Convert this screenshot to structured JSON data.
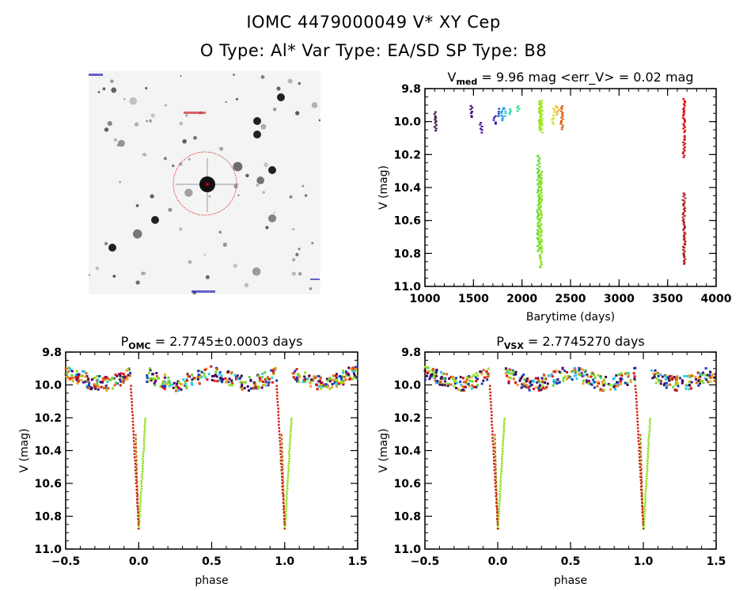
{
  "header": {
    "line1": "IOMC 4479000049    V* XY Cep",
    "line2": "O Type: Al*   Var Type: EA/SD   SP Type: B8"
  },
  "image_panel": {
    "description": "star field finder chart",
    "circle_color": "#cc0000",
    "label_color": "#0000aa"
  },
  "chart_data": [
    {
      "type": "scatter",
      "id": "lightcurve",
      "title_main": "V",
      "title_sub": "med",
      "title_rest": " = 9.96 mag <err_V> = 0.02 mag",
      "xlabel": "Barytime (days)",
      "ylabel": "V (mag)",
      "xlim": [
        1000,
        4000
      ],
      "ylim": [
        9.8,
        11.0
      ],
      "y_inverted": true,
      "xticks": [
        "1000",
        "1500",
        "2000",
        "2500",
        "3000",
        "3500",
        "4000"
      ],
      "yticks": [
        "9.8",
        "10.0",
        "10.2",
        "10.4",
        "10.6",
        "10.8",
        "11.0"
      ],
      "groups": [
        {
          "x": 1110,
          "y": [
            9.94,
            10.05
          ],
          "color": "#3d0a4a"
        },
        {
          "x": 1480,
          "y": [
            9.9,
            9.97
          ],
          "color": "#4b0a6e"
        },
        {
          "x": 1580,
          "y": [
            10.0,
            10.06
          ],
          "color": "#4a10a0"
        },
        {
          "x": 1720,
          "y": [
            9.96,
            10.01
          ],
          "color": "#2a1aa8"
        },
        {
          "x": 1760,
          "y": [
            9.92,
            9.96
          ],
          "color": "#1040c0"
        },
        {
          "x": 1800,
          "y": [
            9.91,
            9.99
          ],
          "color": "#20a0e0"
        },
        {
          "x": 1820,
          "y": [
            9.92,
            9.96
          ],
          "color": "#30c8e8"
        },
        {
          "x": 1880,
          "y": [
            9.92,
            9.95
          ],
          "color": "#30d8c0"
        },
        {
          "x": 1960,
          "y": [
            9.9,
            9.93
          ],
          "color": "#30e090"
        },
        {
          "x": 2185,
          "y": [
            9.87,
            10.04
          ],
          "color": "#90e020"
        },
        {
          "x": 2200,
          "y": [
            9.87,
            10.06
          ],
          "color": "#a0e818"
        },
        {
          "x": 2170,
          "y": [
            10.2,
            10.78
          ],
          "color": "#60d830"
        },
        {
          "x": 2195,
          "y": [
            10.3,
            10.88
          ],
          "color": "#90e020"
        },
        {
          "x": 2320,
          "y": [
            9.96,
            10.01
          ],
          "color": "#d0e020"
        },
        {
          "x": 2340,
          "y": [
            9.9,
            9.94
          ],
          "color": "#f0d020"
        },
        {
          "x": 2370,
          "y": [
            9.91,
            9.95
          ],
          "color": "#f0a020"
        },
        {
          "x": 2410,
          "y": [
            9.9,
            10.04
          ],
          "color": "#e06010"
        },
        {
          "x": 3670,
          "y": [
            9.86,
            10.06
          ],
          "color": "#e01010"
        },
        {
          "x": 3670,
          "y": [
            10.08,
            10.21
          ],
          "color": "#c02020"
        },
        {
          "x": 3670,
          "y": [
            10.43,
            10.86
          ],
          "color": "#b02020"
        }
      ]
    },
    {
      "type": "scatter",
      "id": "phase_omc",
      "title_main": "P",
      "title_sub": "OMC",
      "title_rest": " = 2.7745±0.0003 days",
      "xlabel": "phase",
      "ylabel": "V (mag)",
      "xlim": [
        -0.5,
        1.5
      ],
      "ylim": [
        9.8,
        11.0
      ],
      "y_inverted": true,
      "xticks": [
        "-0.5",
        "0.0",
        "0.5",
        "1.0",
        "1.5"
      ],
      "yticks": [
        "9.8",
        "10.0",
        "10.2",
        "10.4",
        "10.6",
        "10.8",
        "11.0"
      ],
      "period_days": 2.7745,
      "period_err_days": 0.0003,
      "eclipse_depth_mag": 10.87,
      "baseline_mag": 9.96
    },
    {
      "type": "scatter",
      "id": "phase_vsx",
      "title_main": "P",
      "title_sub": "VSX",
      "title_rest": " = 2.7745270 days",
      "xlabel": "phase",
      "ylabel": "V (mag)",
      "xlim": [
        -0.5,
        1.5
      ],
      "ylim": [
        9.8,
        11.0
      ],
      "y_inverted": true,
      "xticks": [
        "-0.5",
        "0.0",
        "0.5",
        "1.0",
        "1.5"
      ],
      "yticks": [
        "9.8",
        "10.0",
        "10.2",
        "10.4",
        "10.6",
        "10.8",
        "11.0"
      ],
      "period_days": 2.774527,
      "eclipse_depth_mag": 10.87,
      "baseline_mag": 9.96
    }
  ],
  "phase_palette": [
    "#e01010",
    "#e06010",
    "#f0a020",
    "#90e020",
    "#60d830",
    "#30c8e8",
    "#1040c0",
    "#4b0a6e",
    "#3d0a4a"
  ]
}
